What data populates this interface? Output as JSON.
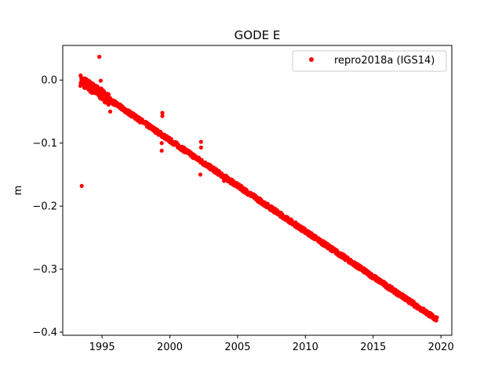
{
  "chart_data": {
    "type": "scatter",
    "title": "GODE E",
    "xlabel": "",
    "ylabel": "m",
    "xlim": [
      1992.1,
      2020.8
    ],
    "ylim": [
      -0.405,
      0.055
    ],
    "x_ticks": [
      1995,
      2000,
      2005,
      2010,
      2015,
      2020
    ],
    "x_tick_labels": [
      "1995",
      "2000",
      "2005",
      "2010",
      "2015",
      "2020"
    ],
    "y_ticks": [
      0.0,
      -0.1,
      -0.2,
      -0.3,
      -0.4
    ],
    "y_tick_labels": [
      "0.0",
      "−0.1",
      "−0.2",
      "−0.3",
      "−0.4"
    ],
    "grid": false,
    "legend": {
      "position": "top-right"
    },
    "series": [
      {
        "name": "repro2018a (IGS14)",
        "color": "#ff0000",
        "marker": "circle",
        "trend": {
          "x_start": 1993.4,
          "y_start": 0.0,
          "x_end": 2019.7,
          "y_end": -0.38
        },
        "outliers": [
          {
            "x": 1993.5,
            "y": -0.168
          },
          {
            "x": 1994.8,
            "y": 0.037
          },
          {
            "x": 1994.9,
            "y": -0.001
          },
          {
            "x": 1995.6,
            "y": -0.05
          },
          {
            "x": 1999.45,
            "y": -0.052
          },
          {
            "x": 1999.45,
            "y": -0.057
          },
          {
            "x": 1999.4,
            "y": -0.1
          },
          {
            "x": 1999.4,
            "y": -0.112
          },
          {
            "x": 2002.3,
            "y": -0.098
          },
          {
            "x": 2002.3,
            "y": -0.107
          },
          {
            "x": 2002.25,
            "y": -0.15
          },
          {
            "x": 2004.0,
            "y": -0.16
          }
        ]
      }
    ]
  }
}
